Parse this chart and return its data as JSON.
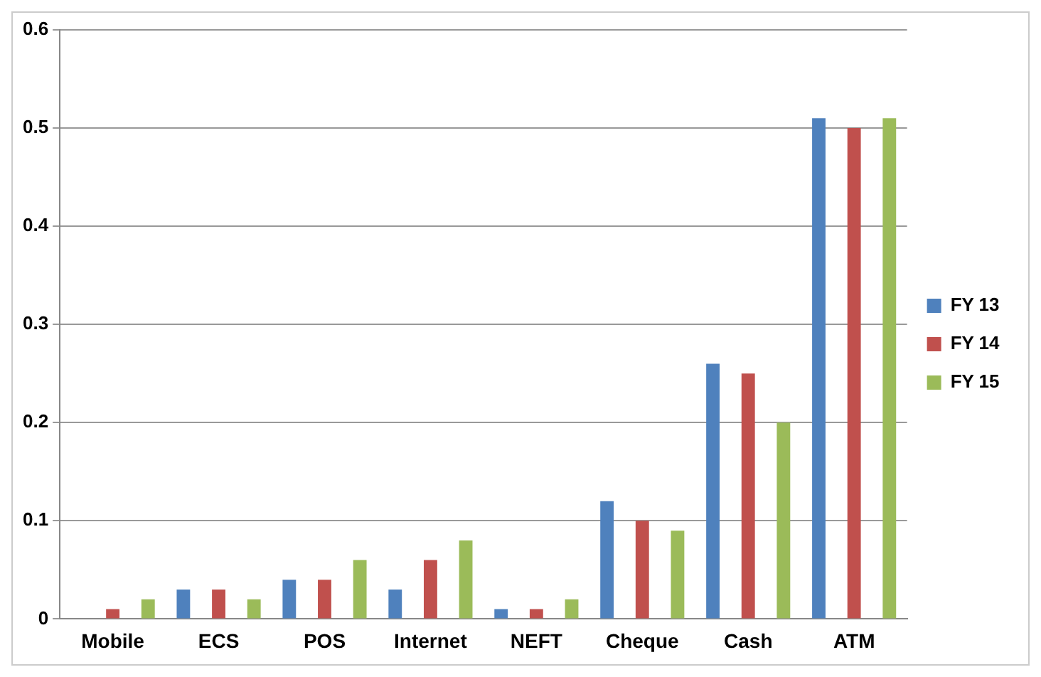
{
  "chart_data": {
    "type": "bar",
    "categories": [
      "Mobile",
      "ECS",
      "POS",
      "Internet",
      "NEFT",
      "Cheque",
      "Cash",
      "ATM"
    ],
    "series": [
      {
        "name": "FY 13",
        "color": "#4f81bd",
        "values": [
          0,
          0.03,
          0.04,
          0.03,
          0.01,
          0.12,
          0.26,
          0.51
        ]
      },
      {
        "name": "FY 14",
        "color": "#c0504d",
        "values": [
          0.01,
          0.03,
          0.04,
          0.06,
          0.01,
          0.1,
          0.25,
          0.5
        ]
      },
      {
        "name": "FY 15",
        "color": "#9bbb59",
        "values": [
          0.02,
          0.02,
          0.06,
          0.08,
          0.02,
          0.09,
          0.2,
          0.51
        ]
      }
    ],
    "ylim": [
      0,
      0.6
    ],
    "yticks": [
      0,
      0.1,
      0.2,
      0.3,
      0.4,
      0.5,
      0.6
    ],
    "grid": "y",
    "legend": "right"
  }
}
